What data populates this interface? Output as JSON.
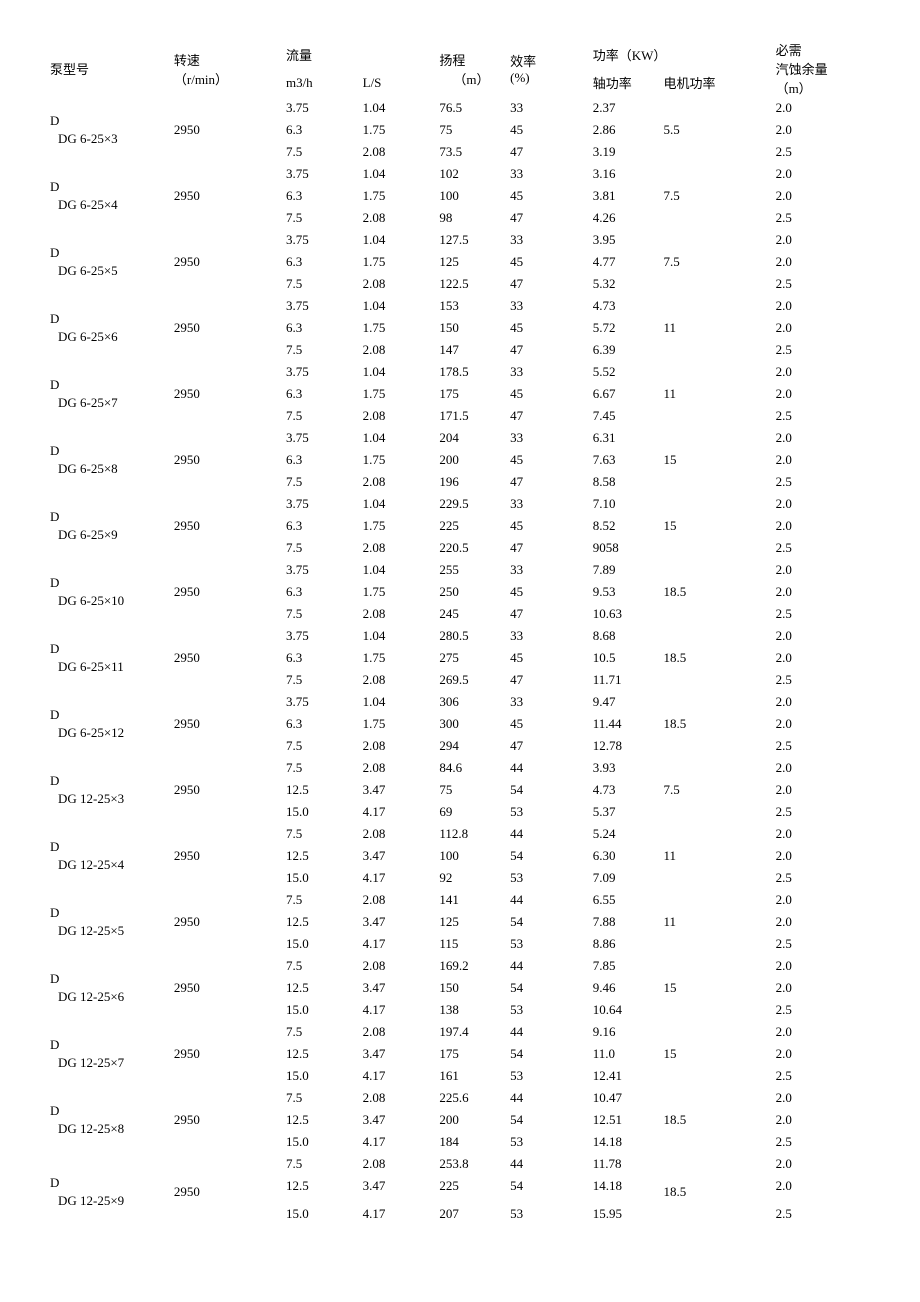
{
  "headers": {
    "model": "泵型号",
    "speed_l1": "转速",
    "speed_l2": "（r/min）",
    "flow": "流量",
    "m3h": "m3/h",
    "ls": "L/S",
    "head_l1": "扬程",
    "head_l2": "（m）",
    "eff_l1": "效率",
    "eff_l2": "(%)",
    "power": "功率（KW）",
    "shaft": "轴功率",
    "motor": "电机功率",
    "npsh_l1": "必需",
    "npsh_l2": "汽蚀余量",
    "npsh_l3": "（m）"
  },
  "groups": [
    {
      "model_l1": "D",
      "model_l2": "DG 6-25×3",
      "speed": "2950",
      "motor": "5.5",
      "rows": [
        [
          "3.75",
          "1.04",
          "76.5",
          "33",
          "2.37",
          "2.0"
        ],
        [
          "6.3",
          "1.75",
          "75",
          "45",
          "2.86",
          "2.0"
        ],
        [
          "7.5",
          "2.08",
          "73.5",
          "47",
          "3.19",
          "2.5"
        ]
      ]
    },
    {
      "model_l1": "D",
      "model_l2": "DG 6-25×4",
      "speed": "2950",
      "motor": "7.5",
      "rows": [
        [
          "3.75",
          "1.04",
          "102",
          "33",
          "3.16",
          "2.0"
        ],
        [
          "6.3",
          "1.75",
          "100",
          "45",
          "3.81",
          "2.0"
        ],
        [
          "7.5",
          "2.08",
          "98",
          "47",
          "4.26",
          "2.5"
        ]
      ]
    },
    {
      "model_l1": "D",
      "model_l2": "DG 6-25×5",
      "speed": "2950",
      "motor": "7.5",
      "rows": [
        [
          "3.75",
          "1.04",
          "127.5",
          "33",
          "3.95",
          "2.0"
        ],
        [
          "6.3",
          "1.75",
          "125",
          "45",
          "4.77",
          "2.0"
        ],
        [
          "7.5",
          "2.08",
          "122.5",
          "47",
          "5.32",
          "2.5"
        ]
      ]
    },
    {
      "model_l1": "D",
      "model_l2": "DG 6-25×6",
      "speed": "2950",
      "motor": "11",
      "rows": [
        [
          "3.75",
          "1.04",
          "153",
          "33",
          "4.73",
          "2.0"
        ],
        [
          "6.3",
          "1.75",
          "150",
          "45",
          "5.72",
          "2.0"
        ],
        [
          "7.5",
          "2.08",
          "147",
          "47",
          "6.39",
          "2.5"
        ]
      ]
    },
    {
      "model_l1": "D",
      "model_l2": "DG 6-25×7",
      "speed": "2950",
      "motor": "11",
      "rows": [
        [
          "3.75",
          "1.04",
          "178.5",
          "33",
          "5.52",
          "2.0"
        ],
        [
          "6.3",
          "1.75",
          "175",
          "45",
          "6.67",
          "2.0"
        ],
        [
          "7.5",
          "2.08",
          "171.5",
          "47",
          "7.45",
          "2.5"
        ]
      ]
    },
    {
      "model_l1": "D",
      "model_l2": "DG 6-25×8",
      "speed": "2950",
      "motor": "15",
      "rows": [
        [
          "3.75",
          "1.04",
          "204",
          "33",
          "6.31",
          "2.0"
        ],
        [
          "6.3",
          "1.75",
          "200",
          "45",
          "7.63",
          "2.0"
        ],
        [
          "7.5",
          "2.08",
          "196",
          "47",
          "8.58",
          "2.5"
        ]
      ]
    },
    {
      "model_l1": "D",
      "model_l2": "DG 6-25×9",
      "speed": "2950",
      "motor": "15",
      "rows": [
        [
          "3.75",
          "1.04",
          "229.5",
          "33",
          "7.10",
          "2.0"
        ],
        [
          "6.3",
          "1.75",
          "225",
          "45",
          "8.52",
          "2.0"
        ],
        [
          "7.5",
          "2.08",
          "220.5",
          "47",
          "9058",
          "2.5"
        ]
      ]
    },
    {
      "model_l1": "D",
      "model_l2": "DG 6-25×10",
      "speed": "2950",
      "motor": "18.5",
      "rows": [
        [
          "3.75",
          "1.04",
          "255",
          "33",
          "7.89",
          "2.0"
        ],
        [
          "6.3",
          "1.75",
          "250",
          "45",
          "9.53",
          "2.0"
        ],
        [
          "7.5",
          "2.08",
          "245",
          "47",
          "10.63",
          "2.5"
        ]
      ]
    },
    {
      "model_l1": "D",
      "model_l2": "DG 6-25×11",
      "speed": "2950",
      "motor": "18.5",
      "rows": [
        [
          "3.75",
          "1.04",
          "280.5",
          "33",
          "8.68",
          "2.0"
        ],
        [
          "6.3",
          "1.75",
          "275",
          "45",
          "10.5",
          "2.0"
        ],
        [
          "7.5",
          "2.08",
          "269.5",
          "47",
          "11.71",
          "2.5"
        ]
      ]
    },
    {
      "model_l1": "D",
      "model_l2": "DG 6-25×12",
      "speed": "2950",
      "motor": "18.5",
      "rows": [
        [
          "3.75",
          "1.04",
          "306",
          "33",
          "9.47",
          "2.0"
        ],
        [
          "6.3",
          "1.75",
          "300",
          "45",
          "11.44",
          "2.0"
        ],
        [
          "7.5",
          "2.08",
          "294",
          "47",
          "12.78",
          "2.5"
        ]
      ]
    },
    {
      "model_l1": "D",
      "model_l2": "DG 12-25×3",
      "speed": "2950",
      "motor": "7.5",
      "rows": [
        [
          "7.5",
          "2.08",
          "84.6",
          "44",
          "3.93",
          "2.0"
        ],
        [
          "12.5",
          "3.47",
          "75",
          "54",
          "4.73",
          "2.0"
        ],
        [
          "15.0",
          "4.17",
          "69",
          "53",
          "5.37",
          "2.5"
        ]
      ]
    },
    {
      "model_l1": "D",
      "model_l2": "DG 12-25×4",
      "speed": "2950",
      "motor": "11",
      "rows": [
        [
          "7.5",
          "2.08",
          "112.8",
          "44",
          "5.24",
          "2.0"
        ],
        [
          "12.5",
          "3.47",
          "100",
          "54",
          "6.30",
          "2.0"
        ],
        [
          "15.0",
          "4.17",
          "92",
          "53",
          "7.09",
          "2.5"
        ]
      ]
    },
    {
      "model_l1": "D",
      "model_l2": "DG 12-25×5",
      "speed": "2950",
      "motor": "11",
      "rows": [
        [
          "7.5",
          "2.08",
          "141",
          "44",
          "6.55",
          "2.0"
        ],
        [
          "12.5",
          "3.47",
          "125",
          "54",
          "7.88",
          "2.0"
        ],
        [
          "15.0",
          "4.17",
          "115",
          "53",
          "8.86",
          "2.5"
        ]
      ]
    },
    {
      "model_l1": "D",
      "model_l2": "DG 12-25×6",
      "speed": "2950",
      "motor": "15",
      "rows": [
        [
          "7.5",
          "2.08",
          "169.2",
          "44",
          "7.85",
          "2.0"
        ],
        [
          "12.5",
          "3.47",
          "150",
          "54",
          "9.46",
          "2.0"
        ],
        [
          "15.0",
          "4.17",
          "138",
          "53",
          "10.64",
          "2.5"
        ]
      ]
    },
    {
      "model_l1": "D",
      "model_l2": "DG 12-25×7",
      "speed": "2950",
      "motor": "15",
      "rows": [
        [
          "7.5",
          "2.08",
          "197.4",
          "44",
          "9.16",
          "2.0"
        ],
        [
          "12.5",
          "3.47",
          "175",
          "54",
          "11.0",
          "2.0"
        ],
        [
          "15.0",
          "4.17",
          "161",
          "53",
          "12.41",
          "2.5"
        ]
      ]
    },
    {
      "model_l1": "D",
      "model_l2": "DG 12-25×8",
      "speed": "2950",
      "motor": "18.5",
      "rows": [
        [
          "7.5",
          "2.08",
          "225.6",
          "44",
          "10.47",
          "2.0"
        ],
        [
          "12.5",
          "3.47",
          "200",
          "54",
          "12.51",
          "2.0"
        ],
        [
          "15.0",
          "4.17",
          "184",
          "53",
          "14.18",
          "2.5"
        ]
      ]
    },
    {
      "model_l1": "D",
      "model_l2": "DG 12-25×9",
      "speed": "2950",
      "motor": "18.5",
      "last_gap": true,
      "rows": [
        [
          "7.5",
          "2.08",
          "253.8",
          "44",
          "11.78",
          "2.0"
        ],
        [
          "12.5",
          "3.47",
          "225",
          "54",
          "14.18",
          "2.0"
        ],
        [
          "15.0",
          "4.17",
          "207",
          "53",
          "15.95",
          "2.5"
        ]
      ]
    }
  ]
}
